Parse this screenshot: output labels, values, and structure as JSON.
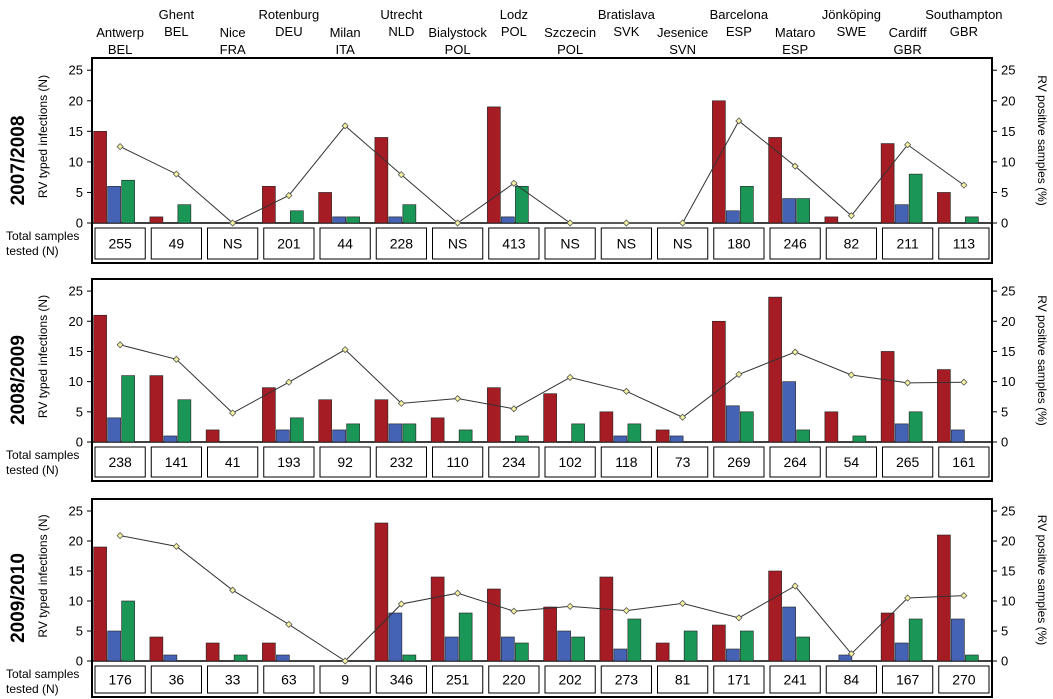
{
  "cities": [
    {
      "name": "Antwerp",
      "country": "BEL"
    },
    {
      "name": "Ghent",
      "country": "BEL"
    },
    {
      "name": "Nice",
      "country": "FRA"
    },
    {
      "name": "Rotenburg",
      "country": "DEU"
    },
    {
      "name": "Milan",
      "country": "ITA"
    },
    {
      "name": "Utrecht",
      "country": "NLD"
    },
    {
      "name": "Bialystock",
      "country": "POL"
    },
    {
      "name": "Lodz",
      "country": "POL"
    },
    {
      "name": "Szczecin",
      "country": "POL"
    },
    {
      "name": "Bratislava",
      "country": "SVK"
    },
    {
      "name": "Jesenice",
      "country": "SVN"
    },
    {
      "name": "Barcelona",
      "country": "ESP"
    },
    {
      "name": "Mataro",
      "country": "ESP"
    },
    {
      "name": "Jönköping",
      "country": "SWE"
    },
    {
      "name": "Cardiff",
      "country": "GBR"
    },
    {
      "name": "Southampton",
      "country": "GBR"
    }
  ],
  "labels": {
    "left_axis": "RV typed infections (N)",
    "right_axis": "RV positive samples (%)",
    "samples_line1": "Total samples",
    "samples_line2": "tested (N)"
  },
  "colors": {
    "red": "#a51c24",
    "blue": "#4463b4",
    "green": "#1a9656",
    "line": "#333333",
    "marker": "#f5f2a0"
  },
  "chart_data": [
    {
      "type": "bar",
      "season": "2007/2008",
      "ylim": [
        0,
        27
      ],
      "yticks": [
        0,
        5,
        10,
        15,
        20,
        25
      ],
      "y2lim": [
        0,
        27
      ],
      "y2ticks": [
        0,
        5,
        10,
        15,
        20,
        25
      ],
      "series": [
        {
          "color": "red",
          "values": [
            15,
            1,
            0,
            6,
            5,
            14,
            0,
            19,
            0,
            0,
            0,
            20,
            14,
            1,
            13,
            5
          ]
        },
        {
          "color": "blue",
          "values": [
            6,
            0,
            0,
            0,
            1,
            1,
            0,
            1,
            0,
            0,
            0,
            2,
            4,
            0,
            3,
            0
          ]
        },
        {
          "color": "green",
          "values": [
            7,
            3,
            0,
            2,
            1,
            3,
            0,
            6,
            0,
            0,
            0,
            6,
            4,
            0,
            8,
            1
          ]
        }
      ],
      "positive_pct": [
        12.5,
        8,
        0,
        4.5,
        15.9,
        7.9,
        0,
        6.5,
        0,
        0,
        0,
        16.7,
        9.3,
        1.2,
        12.8,
        6.2
      ],
      "samples": [
        "255",
        "49",
        "NS",
        "201",
        "44",
        "228",
        "NS",
        "413",
        "NS",
        "NS",
        "NS",
        "180",
        "246",
        "82",
        "211",
        "113"
      ]
    },
    {
      "type": "bar",
      "season": "2008/2009",
      "ylim": [
        0,
        27
      ],
      "yticks": [
        0,
        5,
        10,
        15,
        20,
        25
      ],
      "y2lim": [
        0,
        27
      ],
      "y2ticks": [
        0,
        5,
        10,
        15,
        20,
        25
      ],
      "series": [
        {
          "color": "red",
          "values": [
            21,
            11,
            2,
            9,
            7,
            7,
            4,
            9,
            8,
            5,
            2,
            20,
            24,
            5,
            15,
            12
          ]
        },
        {
          "color": "blue",
          "values": [
            4,
            1,
            0,
            2,
            2,
            3,
            0,
            0,
            0,
            1,
            1,
            6,
            10,
            0,
            3,
            2
          ]
        },
        {
          "color": "green",
          "values": [
            11,
            7,
            0,
            4,
            3,
            3,
            2,
            1,
            3,
            3,
            0,
            5,
            2,
            1,
            5,
            0
          ]
        }
      ],
      "positive_pct": [
        16.1,
        13.7,
        4.8,
        9.9,
        15.3,
        6.4,
        7.2,
        5.5,
        10.7,
        8.4,
        4.1,
        11.2,
        14.9,
        11.1,
        9.8,
        9.9
      ],
      "samples": [
        "238",
        "141",
        "41",
        "193",
        "92",
        "232",
        "110",
        "234",
        "102",
        "118",
        "73",
        "269",
        "264",
        "54",
        "265",
        "161"
      ]
    },
    {
      "type": "bar",
      "season": "2009/2010",
      "ylim": [
        0,
        27
      ],
      "yticks": [
        0,
        5,
        10,
        15,
        20,
        25
      ],
      "y2lim": [
        0,
        27
      ],
      "y2ticks": [
        0,
        5,
        10,
        15,
        20,
        25
      ],
      "series": [
        {
          "color": "red",
          "values": [
            19,
            4,
            3,
            3,
            0,
            23,
            14,
            12,
            9,
            14,
            3,
            6,
            15,
            0,
            8,
            21
          ]
        },
        {
          "color": "blue",
          "values": [
            5,
            1,
            0,
            1,
            0,
            8,
            4,
            4,
            5,
            2,
            0,
            2,
            9,
            1,
            3,
            7
          ]
        },
        {
          "color": "green",
          "values": [
            10,
            0,
            1,
            0,
            0,
            1,
            8,
            3,
            4,
            7,
            5,
            5,
            4,
            0,
            7,
            1
          ]
        }
      ],
      "positive_pct": [
        20.9,
        19.1,
        11.8,
        6.1,
        0,
        9.5,
        11.3,
        8.3,
        9.1,
        8.4,
        9.6,
        7.2,
        12.5,
        1.2,
        10.5,
        10.9
      ],
      "samples": [
        "176",
        "36",
        "33",
        "63",
        "9",
        "346",
        "251",
        "220",
        "202",
        "273",
        "81",
        "171",
        "241",
        "84",
        "167",
        "270"
      ]
    }
  ]
}
